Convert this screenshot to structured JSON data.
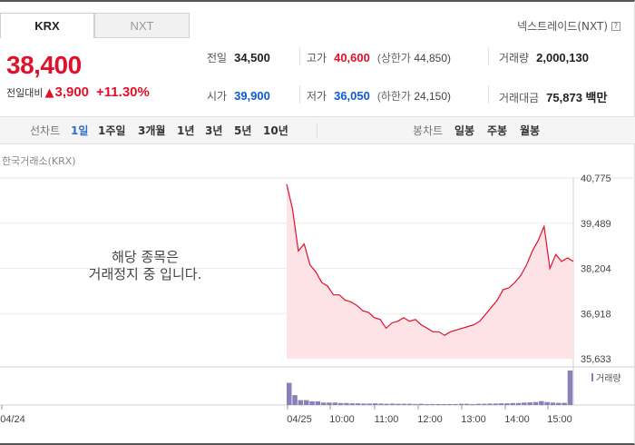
{
  "exchange_tabs": {
    "krx": "KRX",
    "nxt": "NXT"
  },
  "nxt_trade_label": "넥스트레이드(NXT)",
  "help_icon": "?",
  "price": "38,400",
  "change_label": "전일대비",
  "change_arrow": "▲",
  "change_value": "3,900",
  "change_percent": "+11.30%",
  "stats": {
    "prev_close": {
      "label": "전일",
      "value": "34,500"
    },
    "high": {
      "label": "고가",
      "value": "40,600",
      "sub_label": "(상한가",
      "sub_value": "44,850)"
    },
    "volume": {
      "label": "거래량",
      "value": "2,000,130"
    },
    "open": {
      "label": "시가",
      "value": "39,900"
    },
    "low": {
      "label": "저가",
      "value": "36,050",
      "sub_label": "(하한가",
      "sub_value": "24,150)"
    },
    "amount": {
      "label": "거래대금",
      "value": "75,873 백만"
    }
  },
  "period_bar": {
    "line_label": "선차트",
    "line_periods": [
      "1일",
      "1주일",
      "3개월",
      "1년",
      "3년",
      "5년",
      "10년"
    ],
    "active_period": "1일",
    "candle_label": "봉차트",
    "candle_periods": [
      "일봉",
      "주봉",
      "월봉"
    ]
  },
  "source_label": "한국거래소(KRX)",
  "halt_message": [
    "해당 종목은",
    "거래정지 중 입니다."
  ],
  "volume_legend": "거래량",
  "colors": {
    "up": "#e0112b",
    "down": "#0d5bd6",
    "area": "#fde3e5",
    "volume": "#8a7fb8"
  },
  "chart_data": {
    "type": "area",
    "y_ticks": [
      "40,775",
      "39,489",
      "38,204",
      "36,918",
      "35,633"
    ],
    "ylim": [
      35633,
      40775
    ],
    "x_ticks": [
      "04/24",
      "04/25",
      "10:00",
      "11:00",
      "12:00",
      "13:00",
      "14:00",
      "15:00"
    ],
    "price_series": [
      40600,
      39900,
      38700,
      38900,
      38300,
      38100,
      37800,
      37700,
      37450,
      37450,
      37300,
      37250,
      37150,
      37000,
      36950,
      36800,
      36750,
      36500,
      36650,
      36700,
      36800,
      36700,
      36750,
      36600,
      36500,
      36400,
      36400,
      36300,
      36400,
      36450,
      36500,
      36550,
      36600,
      36700,
      36900,
      37100,
      37300,
      37600,
      37650,
      37800,
      38000,
      38300,
      38700,
      39000,
      39400,
      38200,
      38600,
      38400,
      38500,
      38400
    ],
    "volume_series": [
      9,
      4,
      2,
      2,
      1.5,
      1.5,
      1,
      1,
      1,
      0.8,
      0.8,
      0.7,
      0.7,
      0.6,
      0.6,
      0.7,
      0.6,
      0.5,
      0.6,
      0.5,
      0.5,
      0.5,
      0.4,
      0.5,
      0.4,
      0.4,
      0.4,
      0.4,
      0.4,
      0.4,
      0.5,
      0.5,
      0.4,
      0.5,
      0.5,
      0.6,
      0.6,
      0.7,
      0.7,
      0.8,
      0.8,
      1,
      1.1,
      1.2,
      1.6,
      1.2,
      1.0,
      0.9,
      0.9,
      14
    ]
  }
}
